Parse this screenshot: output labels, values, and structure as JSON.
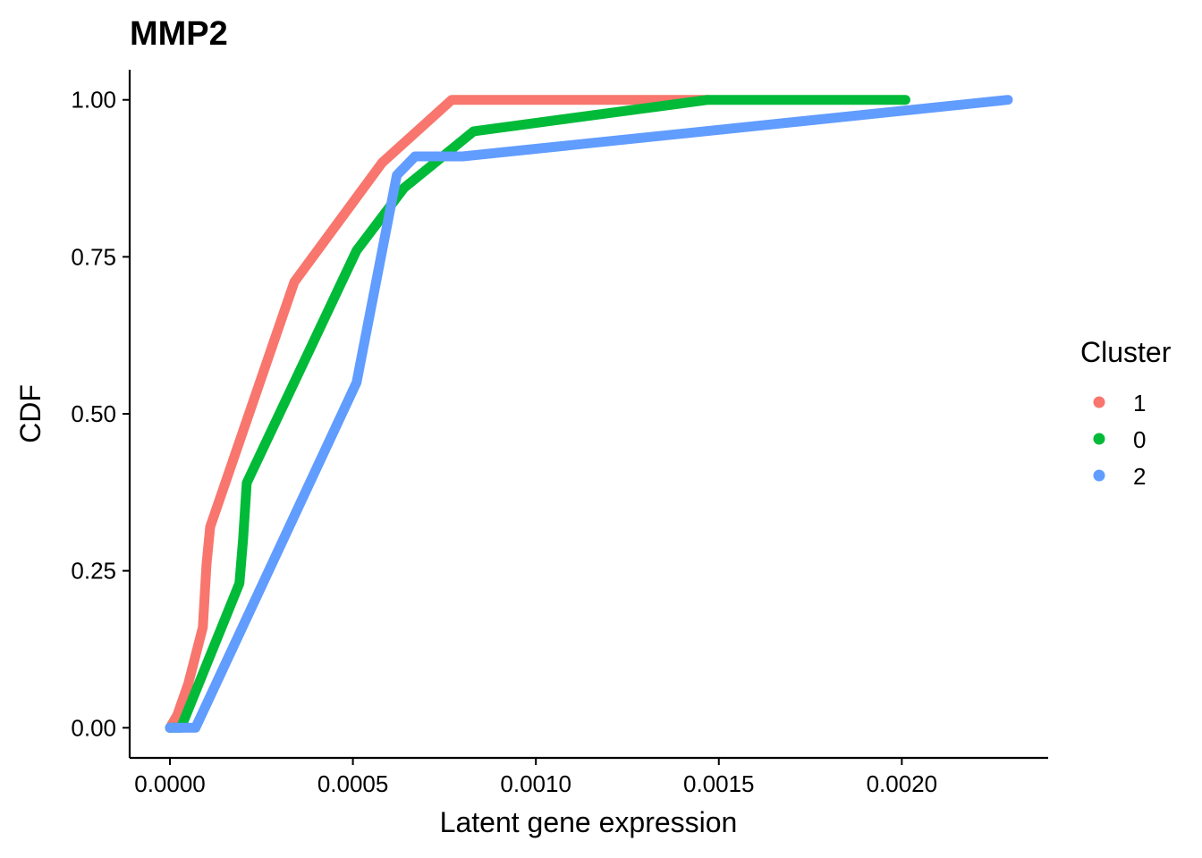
{
  "chart_data": {
    "type": "line",
    "title": "MMP2",
    "xlabel": "Latent gene expression",
    "ylabel": "CDF",
    "xlim": [
      -0.00011,
      0.0024
    ],
    "ylim": [
      -0.048,
      1.048
    ],
    "x_ticks": [
      0.0,
      0.0005,
      0.001,
      0.0015,
      0.002
    ],
    "x_tick_labels": [
      "0.0000",
      "0.0005",
      "0.0010",
      "0.0015",
      "0.0020"
    ],
    "y_ticks": [
      0.0,
      0.25,
      0.5,
      0.75,
      1.0
    ],
    "y_tick_labels": [
      "0.00",
      "0.25",
      "0.50",
      "0.75",
      "1.00"
    ],
    "grid": false,
    "legend": {
      "title": "Cluster",
      "position": "right"
    },
    "series": [
      {
        "name": "1",
        "color": "#F8766D",
        "x": [
          0.0,
          2e-05,
          5e-05,
          9e-05,
          0.0001,
          0.00011,
          0.00034,
          0.00058,
          0.00077,
          0.00147
        ],
        "y": [
          0.0,
          0.02,
          0.07,
          0.16,
          0.26,
          0.32,
          0.71,
          0.9,
          1.0,
          1.0
        ]
      },
      {
        "name": "0",
        "color": "#00BA38",
        "x": [
          0.0,
          3e-05,
          0.00019,
          0.0002,
          0.00021,
          0.00051,
          0.00064,
          0.00083,
          0.00147,
          0.00201
        ],
        "y": [
          0.0,
          0.0,
          0.23,
          0.3,
          0.39,
          0.76,
          0.86,
          0.95,
          1.0,
          1.0
        ]
      },
      {
        "name": "2",
        "color": "#619CFF",
        "x": [
          0.0,
          7e-05,
          0.00051,
          0.00062,
          0.00067,
          0.0008,
          0.00229
        ],
        "y": [
          0.0,
          0.0,
          0.55,
          0.88,
          0.91,
          0.91,
          1.0
        ]
      }
    ]
  }
}
